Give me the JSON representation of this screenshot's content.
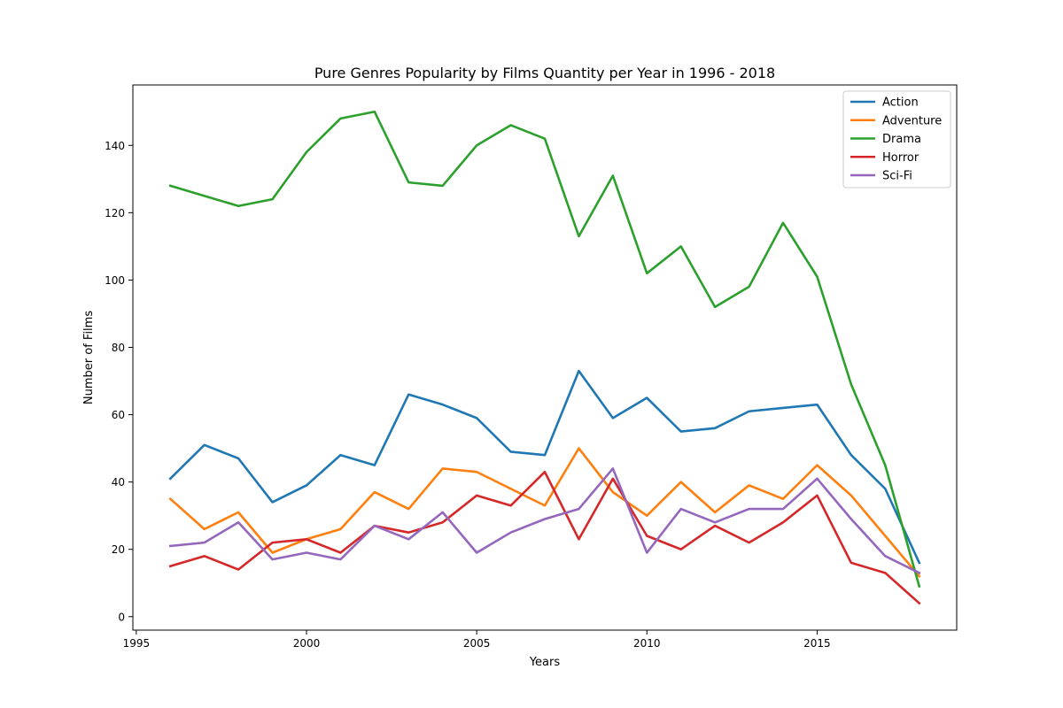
{
  "chart_data": {
    "type": "line",
    "title": "Pure Genres Popularity by Films Quantity per Year in 1996 - 2018",
    "xlabel": "Years",
    "ylabel": "Number of Films",
    "xlim": [
      1994.9,
      2019.1
    ],
    "ylim": [
      -4,
      157.95
    ],
    "xticks": [
      1995,
      2000,
      2005,
      2010,
      2015
    ],
    "yticks": [
      0,
      20,
      40,
      60,
      80,
      100,
      120,
      140
    ],
    "grid": false,
    "legend_position": "top-right",
    "x": [
      1996,
      1997,
      1998,
      1999,
      2000,
      2001,
      2002,
      2003,
      2004,
      2005,
      2006,
      2007,
      2008,
      2009,
      2010,
      2011,
      2012,
      2013,
      2014,
      2015,
      2016,
      2017,
      2018
    ],
    "series": [
      {
        "name": "Action",
        "color": "#1f77b4",
        "values": [
          41,
          51,
          47,
          34,
          39,
          48,
          45,
          66,
          63,
          59,
          49,
          48,
          73,
          59,
          65,
          55,
          56,
          61,
          62,
          63,
          48,
          38,
          16
        ]
      },
      {
        "name": "Adventure",
        "color": "#ff7f0e",
        "values": [
          35,
          26,
          31,
          19,
          23,
          26,
          37,
          32,
          44,
          43,
          38,
          33,
          50,
          37,
          30,
          40,
          31,
          39,
          35,
          45,
          36,
          24,
          12
        ]
      },
      {
        "name": "Drama",
        "color": "#2ca02c",
        "values": [
          128,
          125,
          122,
          124,
          138,
          148,
          150,
          129,
          128,
          140,
          146,
          142,
          113,
          131,
          102,
          110,
          92,
          98,
          117,
          101,
          69,
          45,
          9
        ]
      },
      {
        "name": "Horror",
        "color": "#d62728",
        "values": [
          15,
          18,
          14,
          22,
          23,
          19,
          27,
          25,
          28,
          36,
          33,
          43,
          23,
          41,
          24,
          20,
          27,
          22,
          28,
          36,
          16,
          13,
          4
        ]
      },
      {
        "name": "Sci-Fi",
        "color": "#9467bd",
        "values": [
          21,
          22,
          28,
          17,
          19,
          17,
          27,
          23,
          31,
          19,
          25,
          29,
          32,
          44,
          19,
          32,
          28,
          32,
          32,
          41,
          29,
          18,
          13
        ]
      }
    ]
  }
}
